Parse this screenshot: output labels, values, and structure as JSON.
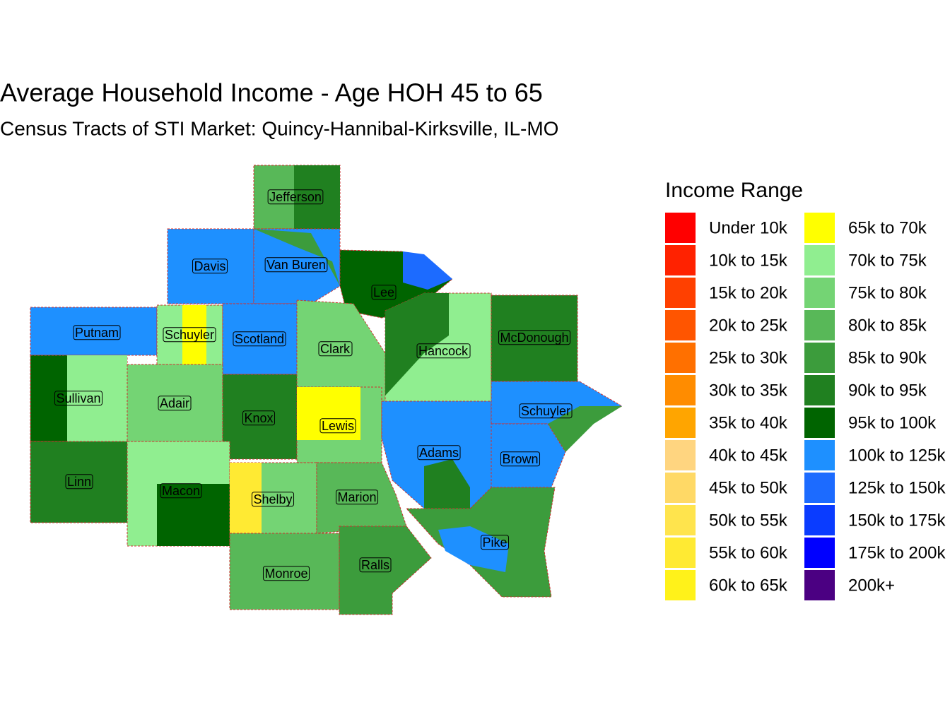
{
  "header": {
    "title": "Average Household Income - Age HOH 45 to 65",
    "subtitle": "Census Tracts of STI Market: Quincy-Hannibal-Kirksville, IL-MO"
  },
  "legend": {
    "title": "Income Range",
    "items": [
      {
        "label": "Under 10k",
        "color": "#FF0000"
      },
      {
        "label": "10k to 15k",
        "color": "#FF2200"
      },
      {
        "label": "15k to 20k",
        "color": "#FF4000"
      },
      {
        "label": "20k to 25k",
        "color": "#FF5500"
      },
      {
        "label": "25k to 30k",
        "color": "#FF7000"
      },
      {
        "label": "30k to 35k",
        "color": "#FF8C00"
      },
      {
        "label": "35k to 40k",
        "color": "#FFA500"
      },
      {
        "label": "40k to 45k",
        "color": "#FFD580"
      },
      {
        "label": "45k to 50k",
        "color": "#FFD966"
      },
      {
        "label": "50k to 55k",
        "color": "#FFE44D"
      },
      {
        "label": "55k to 60k",
        "color": "#FFEA33"
      },
      {
        "label": "60k to 65k",
        "color": "#FFF21A"
      },
      {
        "label": "65k to 70k",
        "color": "#FFFF00"
      },
      {
        "label": "70k to 75k",
        "color": "#90EE90"
      },
      {
        "label": "75k to 80k",
        "color": "#74D474"
      },
      {
        "label": "80k to 85k",
        "color": "#58B858"
      },
      {
        "label": "85k to 90k",
        "color": "#3C9C3C"
      },
      {
        "label": "90k to 95k",
        "color": "#208020"
      },
      {
        "label": "95k to 100k",
        "color": "#006400"
      },
      {
        "label": "100k to 125k",
        "color": "#1E90FF"
      },
      {
        "label": "125k to 150k",
        "color": "#1C6BFF"
      },
      {
        "label": "150k to 175k",
        "color": "#0A3CFF"
      },
      {
        "label": "175k to 200k",
        "color": "#0000FF"
      },
      {
        "label": "200k+",
        "color": "#4B0082"
      }
    ]
  },
  "counties": [
    {
      "name": "Jefferson"
    },
    {
      "name": "Davis"
    },
    {
      "name": "Van Buren"
    },
    {
      "name": "Lee"
    },
    {
      "name": "Putnam"
    },
    {
      "name": "Schuyler"
    },
    {
      "name": "Scotland"
    },
    {
      "name": "Clark"
    },
    {
      "name": "Hancock"
    },
    {
      "name": "McDonough"
    },
    {
      "name": "Sullivan"
    },
    {
      "name": "Adair"
    },
    {
      "name": "Knox"
    },
    {
      "name": "Lewis"
    },
    {
      "name": "Adams"
    },
    {
      "name": "Schuyler"
    },
    {
      "name": "Brown"
    },
    {
      "name": "Linn"
    },
    {
      "name": "Macon"
    },
    {
      "name": "Shelby"
    },
    {
      "name": "Marion"
    },
    {
      "name": "Pike"
    },
    {
      "name": "Monroe"
    },
    {
      "name": "Ralls"
    }
  ]
}
